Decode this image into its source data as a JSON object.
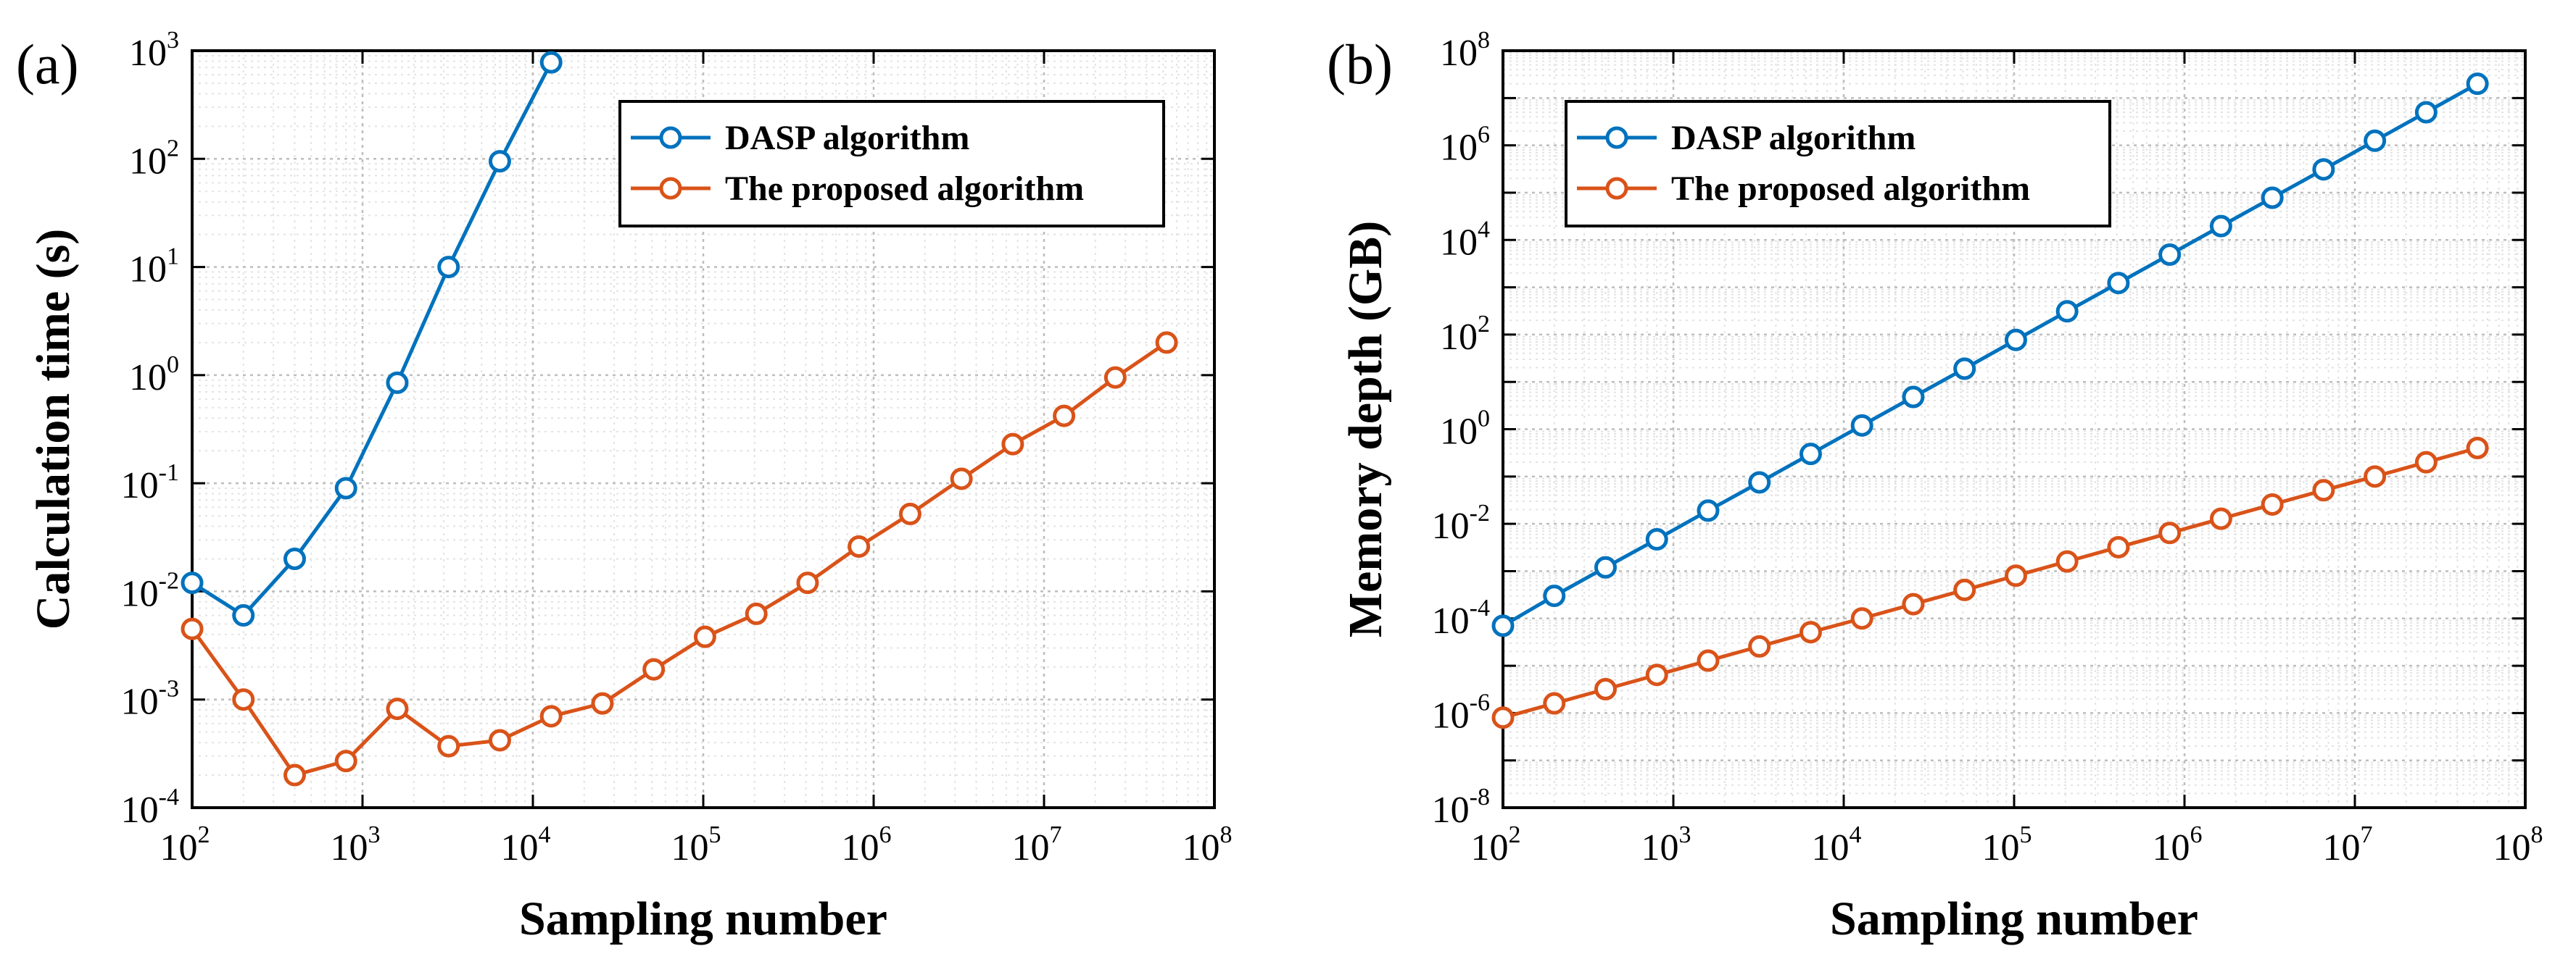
{
  "chart_data": [
    {
      "panel_label": "(a)",
      "type": "line",
      "scale": "log-log",
      "xlabel": "Sampling number",
      "ylabel": "Calculation time (s)",
      "x_exp_range": [
        2,
        8
      ],
      "y_exp_range": [
        -4,
        3
      ],
      "x_ticks": [
        2,
        3,
        4,
        5,
        6,
        7,
        8
      ],
      "y_ticks": [
        -4,
        -3,
        -2,
        -1,
        0,
        1,
        2,
        3
      ],
      "grid": true,
      "legend_position": "top-right",
      "series": [
        {
          "name": "DASP algorithm",
          "color": "#0072BD",
          "x": [
            100,
            200,
            400,
            800,
            1600,
            3200,
            6400,
            12800
          ],
          "y": [
            0.012,
            0.006,
            0.02,
            0.09,
            0.85,
            10,
            95,
            780
          ]
        },
        {
          "name": "The proposed algorithm",
          "color": "#D95319",
          "x": [
            100,
            200,
            400,
            800,
            1600,
            3200,
            6400,
            12800,
            25600,
            51200,
            102400,
            204800,
            409600,
            819200,
            1638400,
            3276800,
            6553600,
            13107200,
            26214400,
            52428800
          ],
          "y": [
            0.0045,
            0.001,
            0.0002,
            0.00027,
            0.00082,
            0.00037,
            0.00042,
            0.0007,
            0.00092,
            0.0019,
            0.0038,
            0.0062,
            0.012,
            0.026,
            0.052,
            0.11,
            0.23,
            0.42,
            0.95,
            2.0
          ]
        }
      ]
    },
    {
      "panel_label": "(b)",
      "type": "line",
      "scale": "log-log",
      "xlabel": "Sampling number",
      "ylabel": "Memory depth (GB)",
      "x_exp_range": [
        2,
        8
      ],
      "y_exp_range": [
        -8,
        8
      ],
      "x_ticks": [
        2,
        3,
        4,
        5,
        6,
        7,
        8
      ],
      "y_ticks": [
        -8,
        -6,
        -4,
        -2,
        0,
        2,
        4,
        6,
        8
      ],
      "grid": true,
      "legend_position": "top-left",
      "series": [
        {
          "name": "DASP algorithm",
          "color": "#0072BD",
          "x": [
            100,
            200,
            400,
            800,
            1600,
            3200,
            6400,
            12800,
            25600,
            51200,
            102400,
            204800,
            409600,
            819200,
            1638400,
            3276800,
            6553600,
            13107200,
            26214400,
            52428800
          ],
          "y": [
            7e-05,
            0.0003,
            0.0012,
            0.0047,
            0.019,
            0.075,
            0.3,
            1.2,
            4.8,
            19,
            77,
            310,
            1230,
            4900,
            19600,
            78000,
            310000,
            1250000,
            5000000,
            20000000
          ]
        },
        {
          "name": "The proposed algorithm",
          "color": "#D95319",
          "x": [
            100,
            200,
            400,
            800,
            1600,
            3200,
            6400,
            12800,
            25600,
            51200,
            102400,
            204800,
            409600,
            819200,
            1638400,
            3276800,
            6553600,
            13107200,
            26214400,
            52428800
          ],
          "y": [
            8e-07,
            1.6e-06,
            3.2e-06,
            6.4e-06,
            1.28e-05,
            2.56e-05,
            5.12e-05,
            0.0001,
            0.0002,
            0.0004,
            0.0008,
            0.0016,
            0.0032,
            0.0064,
            0.0128,
            0.0256,
            0.0512,
            0.1,
            0.2,
            0.4
          ]
        }
      ]
    }
  ]
}
